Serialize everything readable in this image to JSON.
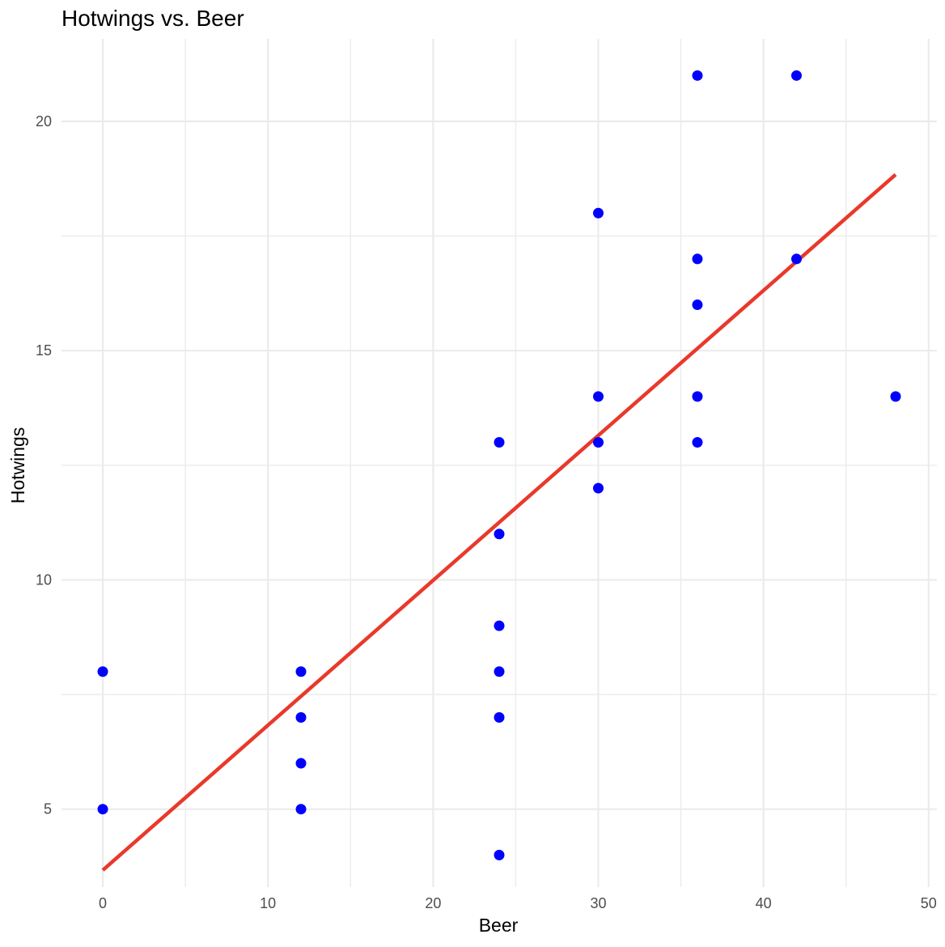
{
  "chart_data": {
    "type": "scatter",
    "title": "Hotwings vs. Beer",
    "xlabel": "Beer",
    "ylabel": "Hotwings",
    "xlim": [
      -2.5,
      50.5
    ],
    "ylim": [
      3.3,
      21.8
    ],
    "x_ticks": [
      0,
      10,
      20,
      30,
      40,
      50
    ],
    "y_ticks": [
      5,
      10,
      15,
      20
    ],
    "grid": true,
    "point_color": "#0000ff",
    "line_color": "#e8392b",
    "points": [
      {
        "x": 0,
        "y": 8
      },
      {
        "x": 0,
        "y": 5
      },
      {
        "x": 12,
        "y": 8
      },
      {
        "x": 12,
        "y": 7
      },
      {
        "x": 12,
        "y": 6
      },
      {
        "x": 12,
        "y": 5
      },
      {
        "x": 24,
        "y": 13
      },
      {
        "x": 24,
        "y": 11
      },
      {
        "x": 24,
        "y": 9
      },
      {
        "x": 24,
        "y": 8
      },
      {
        "x": 24,
        "y": 7
      },
      {
        "x": 24,
        "y": 4
      },
      {
        "x": 30,
        "y": 18
      },
      {
        "x": 30,
        "y": 14
      },
      {
        "x": 30,
        "y": 13
      },
      {
        "x": 30,
        "y": 12
      },
      {
        "x": 36,
        "y": 21
      },
      {
        "x": 36,
        "y": 17
      },
      {
        "x": 36,
        "y": 16
      },
      {
        "x": 36,
        "y": 14
      },
      {
        "x": 36,
        "y": 13
      },
      {
        "x": 42,
        "y": 21
      },
      {
        "x": 42,
        "y": 17
      },
      {
        "x": 48,
        "y": 14
      }
    ],
    "trend_line": {
      "x": [
        0,
        48
      ],
      "y": [
        3.67,
        18.84
      ]
    }
  }
}
